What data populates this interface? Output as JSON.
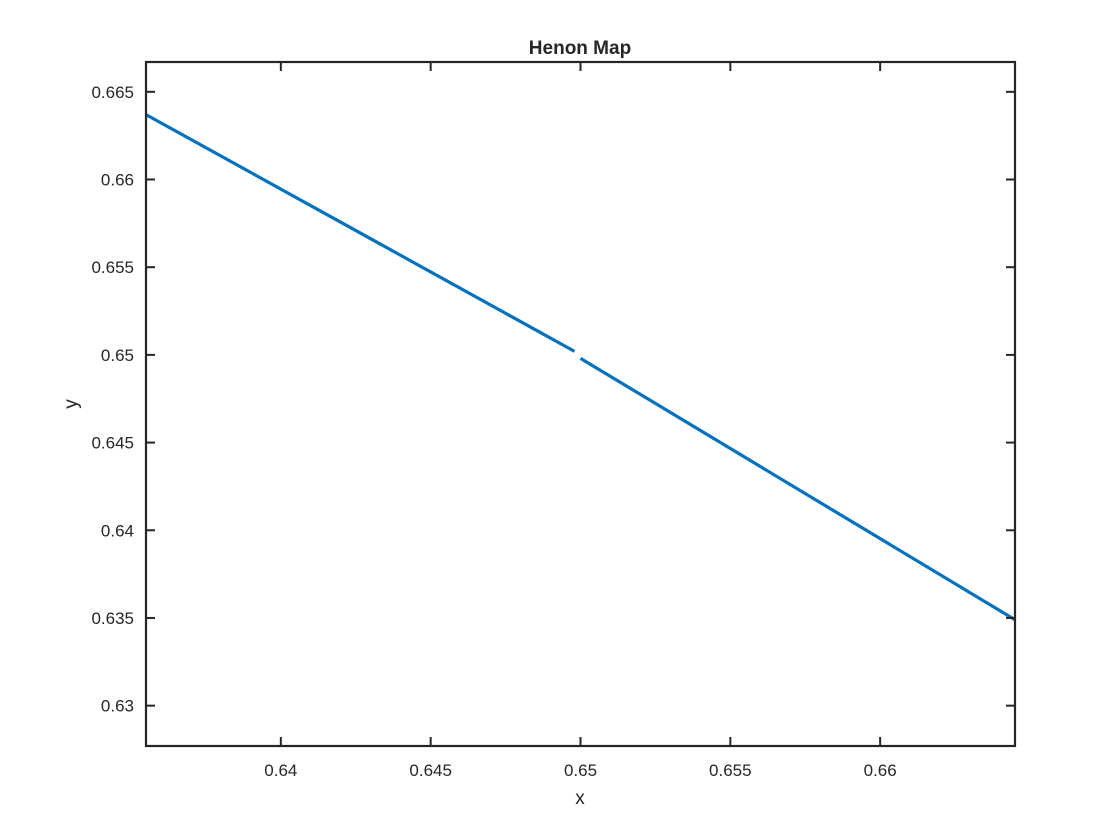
{
  "chart_data": {
    "type": "line",
    "title": "Henon Map",
    "xlabel": "x",
    "ylabel": "y",
    "xlim": [
      0.6355,
      0.6645
    ],
    "ylim": [
      0.6277,
      0.6667
    ],
    "xticks": [
      0.64,
      0.645,
      0.65,
      0.655,
      0.66
    ],
    "xtick_labels": [
      "0.64",
      "0.645",
      "0.65",
      "0.655",
      "0.66"
    ],
    "yticks": [
      0.63,
      0.635,
      0.64,
      0.645,
      0.65,
      0.655,
      0.66,
      0.665
    ],
    "ytick_labels": [
      "0.63",
      "0.635",
      "0.64",
      "0.645",
      "0.65",
      "0.655",
      "0.66",
      "0.665"
    ],
    "grid": false,
    "legend": "none",
    "series": [
      {
        "color": "#0072BD",
        "segments": [
          {
            "x": [
              0.6355,
              0.6498
            ],
            "y": [
              0.6637,
              0.6502
            ]
          },
          {
            "x": [
              0.65,
              0.6645
            ],
            "y": [
              0.6498,
              0.6349
            ]
          }
        ]
      }
    ]
  }
}
